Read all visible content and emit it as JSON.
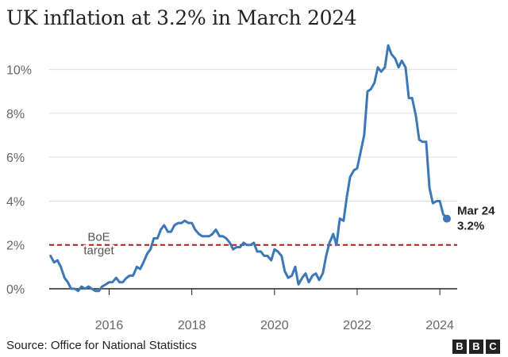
{
  "title": "UK inflation at 3.2% in March 2024",
  "source": "Source: Office for National Statistics",
  "logo_letters": [
    "B",
    "B",
    "C"
  ],
  "chart_data": {
    "type": "line",
    "title": "UK inflation at 3.2% in March 2024",
    "xlabel": "",
    "ylabel": "",
    "xlim": [
      2014.55,
      2024.42
    ],
    "ylim": [
      0,
      11
    ],
    "y_ticks": [
      0,
      2,
      4,
      6,
      8,
      10
    ],
    "y_tick_labels": [
      "0%",
      "2%",
      "4%",
      "6%",
      "8%",
      "10%"
    ],
    "x_ticks": [
      2016,
      2018,
      2020,
      2022,
      2024
    ],
    "x_tick_labels": [
      "2016",
      "2018",
      "2020",
      "2022",
      "2024"
    ],
    "grid": "horizontal",
    "line_color": "#3b78b5",
    "target": {
      "value": 2,
      "label_lines": [
        "BoE",
        "target"
      ],
      "color": "#aa1d1d"
    },
    "end_label": {
      "lines": [
        "Mar 24",
        "3.2%"
      ]
    },
    "series": [
      {
        "points": [
          [
            2014.58,
            1.5
          ],
          [
            2014.67,
            1.2
          ],
          [
            2014.75,
            1.3
          ],
          [
            2014.83,
            1.0
          ],
          [
            2014.92,
            0.5
          ],
          [
            2015.0,
            0.3
          ],
          [
            2015.08,
            0.0
          ],
          [
            2015.17,
            0.0
          ],
          [
            2015.25,
            -0.1
          ],
          [
            2015.33,
            0.1
          ],
          [
            2015.42,
            0.0
          ],
          [
            2015.5,
            0.1
          ],
          [
            2015.58,
            0.0
          ],
          [
            2015.67,
            -0.1
          ],
          [
            2015.75,
            -0.1
          ],
          [
            2015.83,
            0.1
          ],
          [
            2015.92,
            0.2
          ],
          [
            2016.0,
            0.3
          ],
          [
            2016.08,
            0.3
          ],
          [
            2016.17,
            0.5
          ],
          [
            2016.25,
            0.3
          ],
          [
            2016.33,
            0.3
          ],
          [
            2016.42,
            0.5
          ],
          [
            2016.5,
            0.6
          ],
          [
            2016.58,
            0.6
          ],
          [
            2016.67,
            1.0
          ],
          [
            2016.75,
            0.9
          ],
          [
            2016.83,
            1.2
          ],
          [
            2016.92,
            1.6
          ],
          [
            2017.0,
            1.8
          ],
          [
            2017.08,
            2.3
          ],
          [
            2017.17,
            2.3
          ],
          [
            2017.25,
            2.7
          ],
          [
            2017.33,
            2.9
          ],
          [
            2017.42,
            2.6
          ],
          [
            2017.5,
            2.6
          ],
          [
            2017.58,
            2.9
          ],
          [
            2017.67,
            3.0
          ],
          [
            2017.75,
            3.0
          ],
          [
            2017.83,
            3.1
          ],
          [
            2017.92,
            3.0
          ],
          [
            2018.0,
            3.0
          ],
          [
            2018.08,
            2.7
          ],
          [
            2018.17,
            2.5
          ],
          [
            2018.25,
            2.4
          ],
          [
            2018.33,
            2.4
          ],
          [
            2018.42,
            2.4
          ],
          [
            2018.5,
            2.5
          ],
          [
            2018.58,
            2.7
          ],
          [
            2018.67,
            2.4
          ],
          [
            2018.75,
            2.4
          ],
          [
            2018.83,
            2.3
          ],
          [
            2018.92,
            2.1
          ],
          [
            2019.0,
            1.8
          ],
          [
            2019.08,
            1.9
          ],
          [
            2019.17,
            1.9
          ],
          [
            2019.25,
            2.1
          ],
          [
            2019.33,
            2.0
          ],
          [
            2019.42,
            2.0
          ],
          [
            2019.5,
            2.1
          ],
          [
            2019.58,
            1.7
          ],
          [
            2019.67,
            1.7
          ],
          [
            2019.75,
            1.5
          ],
          [
            2019.83,
            1.5
          ],
          [
            2019.92,
            1.3
          ],
          [
            2020.0,
            1.8
          ],
          [
            2020.08,
            1.7
          ],
          [
            2020.17,
            1.5
          ],
          [
            2020.25,
            0.8
          ],
          [
            2020.33,
            0.5
          ],
          [
            2020.42,
            0.6
          ],
          [
            2020.5,
            1.0
          ],
          [
            2020.58,
            0.2
          ],
          [
            2020.67,
            0.5
          ],
          [
            2020.75,
            0.7
          ],
          [
            2020.83,
            0.3
          ],
          [
            2020.92,
            0.6
          ],
          [
            2021.0,
            0.7
          ],
          [
            2021.08,
            0.4
          ],
          [
            2021.17,
            0.7
          ],
          [
            2021.25,
            1.5
          ],
          [
            2021.33,
            2.1
          ],
          [
            2021.42,
            2.5
          ],
          [
            2021.5,
            2.0
          ],
          [
            2021.58,
            3.2
          ],
          [
            2021.67,
            3.1
          ],
          [
            2021.75,
            4.2
          ],
          [
            2021.83,
            5.1
          ],
          [
            2021.92,
            5.4
          ],
          [
            2022.0,
            5.5
          ],
          [
            2022.08,
            6.2
          ],
          [
            2022.17,
            7.0
          ],
          [
            2022.25,
            9.0
          ],
          [
            2022.33,
            9.1
          ],
          [
            2022.42,
            9.4
          ],
          [
            2022.5,
            10.1
          ],
          [
            2022.58,
            9.9
          ],
          [
            2022.67,
            10.1
          ],
          [
            2022.75,
            11.1
          ],
          [
            2022.83,
            10.7
          ],
          [
            2022.92,
            10.5
          ],
          [
            2023.0,
            10.1
          ],
          [
            2023.08,
            10.4
          ],
          [
            2023.17,
            10.1
          ],
          [
            2023.25,
            8.7
          ],
          [
            2023.33,
            8.7
          ],
          [
            2023.42,
            7.9
          ],
          [
            2023.5,
            6.8
          ],
          [
            2023.58,
            6.7
          ],
          [
            2023.67,
            6.7
          ],
          [
            2023.75,
            4.6
          ],
          [
            2023.83,
            3.9
          ],
          [
            2023.92,
            4.0
          ],
          [
            2024.0,
            4.0
          ],
          [
            2024.08,
            3.4
          ],
          [
            2024.17,
            3.2
          ]
        ]
      }
    ]
  }
}
